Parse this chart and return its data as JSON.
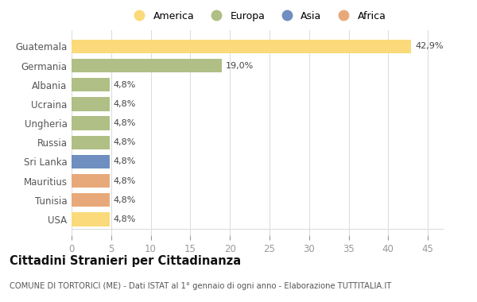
{
  "countries": [
    "Guatemala",
    "Germania",
    "Albania",
    "Ucraina",
    "Ungheria",
    "Russia",
    "Sri Lanka",
    "Mauritius",
    "Tunisia",
    "USA"
  ],
  "values": [
    42.9,
    19.0,
    4.8,
    4.8,
    4.8,
    4.8,
    4.8,
    4.8,
    4.8,
    4.8
  ],
  "labels": [
    "42,9%",
    "19,0%",
    "4,8%",
    "4,8%",
    "4,8%",
    "4,8%",
    "4,8%",
    "4,8%",
    "4,8%",
    "4,8%"
  ],
  "colors": [
    "#FADA7A",
    "#AFBF85",
    "#AFBF85",
    "#AFBF85",
    "#AFBF85",
    "#AFBF85",
    "#6E8FBF",
    "#E8A97A",
    "#E8A97A",
    "#FADA7A"
  ],
  "legend": [
    {
      "label": "America",
      "color": "#FADA7A"
    },
    {
      "label": "Europa",
      "color": "#AFBF85"
    },
    {
      "label": "Asia",
      "color": "#6E8FBF"
    },
    {
      "label": "Africa",
      "color": "#E8A97A"
    }
  ],
  "title": "Cittadini Stranieri per Cittadinanza",
  "subtitle": "COMUNE DI TORTORICI (ME) - Dati ISTAT al 1° gennaio di ogni anno - Elaborazione TUTTITALIA.IT",
  "xlim": [
    0,
    47
  ],
  "xticks": [
    0,
    5,
    10,
    15,
    20,
    25,
    30,
    35,
    40,
    45
  ],
  "bg_color": "#ffffff",
  "grid_color": "#dddddd",
  "label_color": "#666666",
  "tick_color": "#999999"
}
